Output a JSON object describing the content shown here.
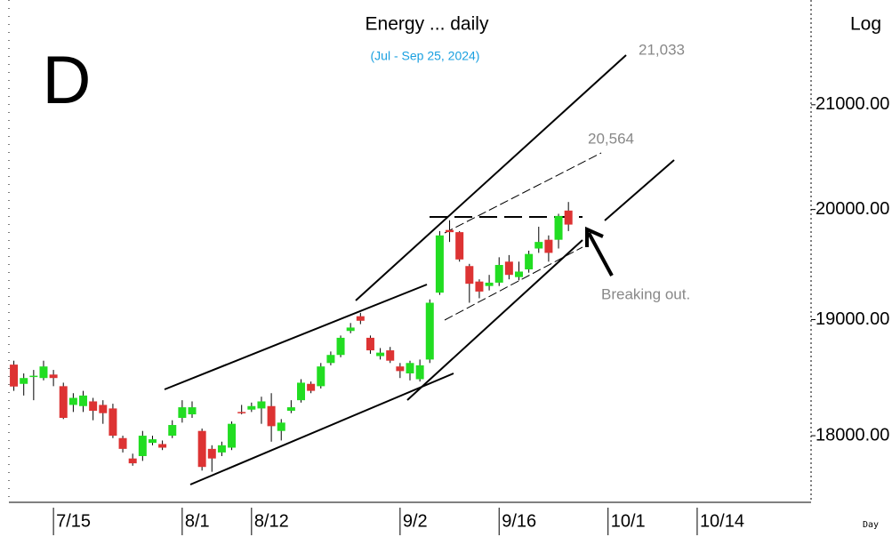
{
  "chart_data": {
    "type": "candlestick",
    "title": "Energy ... daily",
    "subtitle": "(Jul - Sep 25, 2024)",
    "corner_label": "D",
    "scale_label": "Log",
    "period_label": "Day",
    "annotations": [
      "21,033",
      "20,564",
      "Breaking out."
    ],
    "log_scale": true,
    "up_color": "#22dd22",
    "down_color": "#dd3333",
    "categories": [
      null,
      null,
      null,
      null,
      "7/15",
      null,
      null,
      null,
      null,
      null,
      null,
      null,
      null,
      null,
      null,
      null,
      null,
      "8/1",
      null,
      null,
      null,
      null,
      null,
      null,
      "8/12",
      null,
      null,
      null,
      null,
      null,
      null,
      null,
      null,
      null,
      null,
      null,
      null,
      null,
      null,
      "9/2",
      null,
      null,
      null,
      null,
      null,
      null,
      null,
      null,
      null,
      "9/16",
      null,
      null,
      null,
      null,
      null,
      null,
      null,
      null,
      null,
      null,
      "10/1",
      null,
      null,
      null,
      null,
      null,
      null,
      null,
      null,
      "10/14",
      null,
      null,
      null,
      null,
      null,
      null,
      null,
      null,
      null,
      null,
      null
    ],
    "open": [
      18606,
      18440,
      18500,
      18490,
      18520,
      18420,
      18260,
      18250,
      18290,
      18260,
      18230,
      17980,
      17810,
      17830,
      17940,
      17930,
      18000,
      18150,
      18180,
      18040,
      17890,
      17860,
      17900,
      18200,
      18220,
      18230,
      18250,
      18040,
      18210,
      18300,
      18440,
      18420,
      18620,
      18690,
      18900,
      19030,
      18840,
      18680,
      18730,
      18590,
      18530,
      18480,
      18650,
      19240,
      19810,
      19790,
      19480,
      19340,
      19300,
      19330,
      19520,
      19380,
      19450,
      19640,
      19720,
      19720,
      19990,
      null,
      null,
      null,
      null,
      null,
      null,
      null,
      null,
      null,
      null,
      null,
      null,
      null,
      null,
      null,
      null,
      null,
      null,
      null,
      null,
      null,
      null,
      null,
      null
    ],
    "close": [
      18417,
      18490,
      18510,
      18590,
      18490,
      18150,
      18320,
      18340,
      18210,
      18190,
      18000,
      17890,
      17770,
      18000,
      17970,
      17900,
      18090,
      18240,
      18240,
      17740,
      17810,
      17920,
      18100,
      18190,
      18250,
      18290,
      18080,
      18110,
      18240,
      18450,
      18380,
      18590,
      18690,
      18840,
      18930,
      18990,
      18730,
      18710,
      18640,
      18550,
      18620,
      18600,
      19150,
      19760,
      19790,
      19540,
      19320,
      19250,
      19330,
      19490,
      19400,
      19430,
      19590,
      19700,
      19600,
      19940,
      19860,
      null,
      null,
      null,
      null,
      null,
      null,
      null,
      null,
      null,
      null,
      null,
      null,
      null,
      null,
      null,
      null,
      null,
      null,
      null,
      null,
      null,
      null,
      null,
      null
    ],
    "high": [
      18640,
      18530,
      18560,
      18640,
      18560,
      18450,
      18360,
      18380,
      18320,
      18300,
      18270,
      18000,
      17850,
      18040,
      18000,
      17960,
      18130,
      18300,
      18290,
      18060,
      17920,
      17950,
      18120,
      18260,
      18280,
      18330,
      18360,
      18140,
      18300,
      18480,
      18460,
      18620,
      18720,
      18860,
      18970,
      19060,
      18860,
      18750,
      18760,
      18620,
      18640,
      18650,
      19180,
      19800,
      19900,
      19800,
      19500,
      19360,
      19400,
      19560,
      19580,
      19520,
      19620,
      19840,
      19760,
      19960,
      20070,
      null,
      null,
      null,
      null,
      null,
      null,
      null,
      null,
      null,
      null,
      null,
      null,
      null,
      null,
      null,
      null,
      null,
      null,
      null,
      null,
      null,
      null,
      null,
      null
    ],
    "low": [
      18380,
      18340,
      18300,
      18470,
      18420,
      18140,
      18200,
      18200,
      18130,
      18100,
      17980,
      17860,
      17750,
      17790,
      17920,
      17880,
      17980,
      18110,
      18150,
      17710,
      17700,
      17830,
      17880,
      18180,
      18200,
      18100,
      17950,
      17960,
      18190,
      18280,
      18360,
      18400,
      18600,
      18670,
      18880,
      18960,
      18700,
      18650,
      18620,
      18490,
      18470,
      18460,
      18620,
      19220,
      19700,
      19520,
      19150,
      19190,
      19260,
      19300,
      19360,
      19350,
      19420,
      19600,
      19520,
      19640,
      19800,
      null,
      null,
      null,
      null,
      null,
      null,
      null,
      null,
      null,
      null,
      null,
      null,
      null,
      null,
      null,
      null,
      null,
      null,
      null,
      null,
      null,
      null,
      null,
      null
    ],
    "ylim": [
      17450,
      22050
    ],
    "yticks": [
      {
        "value": 18000,
        "label": "18000.00"
      },
      {
        "value": 19000,
        "label": "19000.00"
      },
      {
        "value": 20000,
        "label": "20000.00"
      },
      {
        "value": 21000,
        "label": "21000.00"
      }
    ]
  }
}
